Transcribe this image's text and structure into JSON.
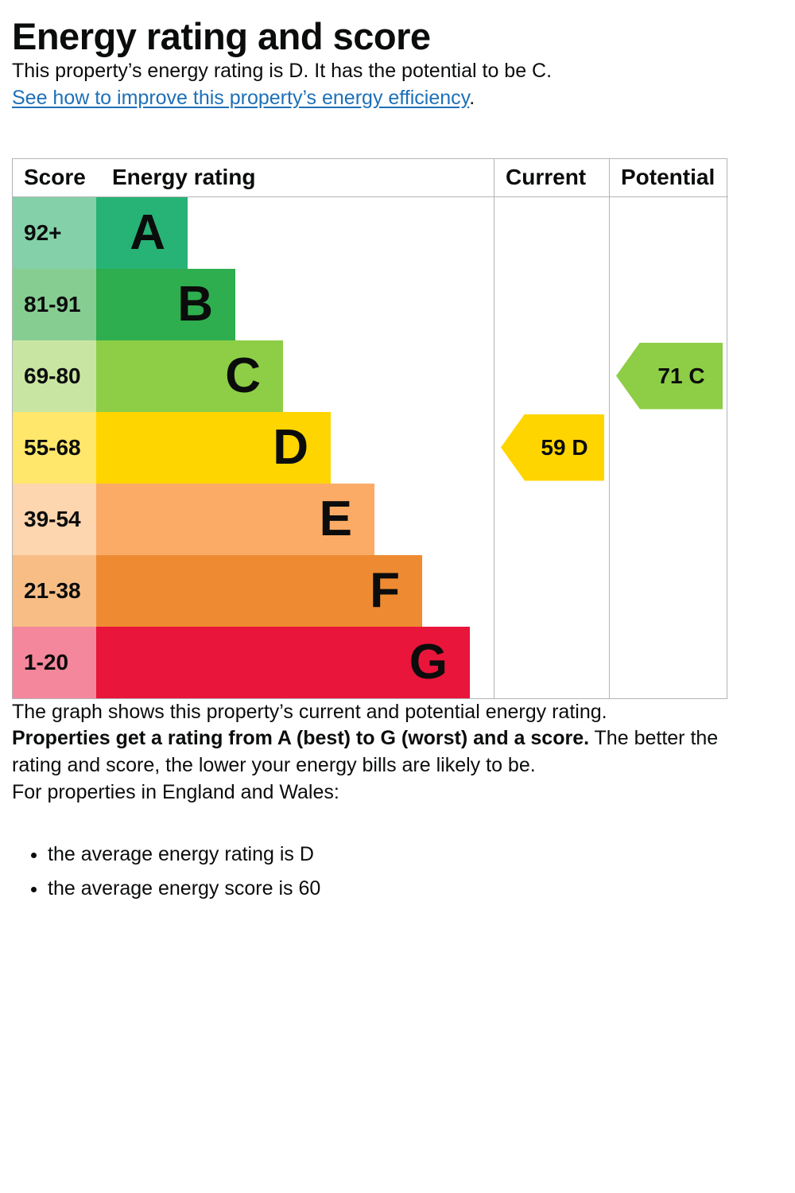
{
  "page": {
    "title": "Energy rating and score",
    "intro": "This property’s energy rating is D. It has the potential to be C.",
    "link_text": "See how to improve this property’s energy efficiency",
    "link_suffix": ".",
    "graph_caption": "The graph shows this property’s current and potential energy rating.",
    "rating_bold": "Properties get a rating from A (best) to G (worst) and a score.",
    "rating_rest": " The better the rating and score, the lower your energy bills are likely to be.",
    "region_heading": "For properties in England and Wales:",
    "bullets": [
      "the average energy rating is D",
      "the average energy score is 60"
    ]
  },
  "chart_data": {
    "type": "bar",
    "title": "Energy rating and score",
    "headers": {
      "score": "Score",
      "rating": "Energy rating",
      "current": "Current",
      "potential": "Potential"
    },
    "bands": [
      {
        "range": "92+",
        "letter": "A",
        "color": "#27b376",
        "tint": "#84d0a9",
        "width_pct": 23
      },
      {
        "range": "81-91",
        "letter": "B",
        "color": "#2eae4e",
        "tint": "#86cd92",
        "width_pct": 35
      },
      {
        "range": "69-80",
        "letter": "C",
        "color": "#8dce46",
        "tint": "#c8e6a2",
        "width_pct": 47
      },
      {
        "range": "55-68",
        "letter": "D",
        "color": "#ffd500",
        "tint": "#ffe76b",
        "width_pct": 59
      },
      {
        "range": "39-54",
        "letter": "E",
        "color": "#fbab66",
        "tint": "#fdd5ae",
        "width_pct": 70
      },
      {
        "range": "21-38",
        "letter": "F",
        "color": "#ee8b32",
        "tint": "#f7bd85",
        "width_pct": 82
      },
      {
        "range": "1-20",
        "letter": "G",
        "color": "#e9153b",
        "tint": "#f4879c",
        "width_pct": 94
      }
    ],
    "current": {
      "score": 59,
      "rating": "D",
      "label": "59 D",
      "color": "#ffd500",
      "band_index": 3
    },
    "potential": {
      "score": 71,
      "rating": "C",
      "label": "71 C",
      "color": "#8dce46",
      "band_index": 2
    }
  }
}
